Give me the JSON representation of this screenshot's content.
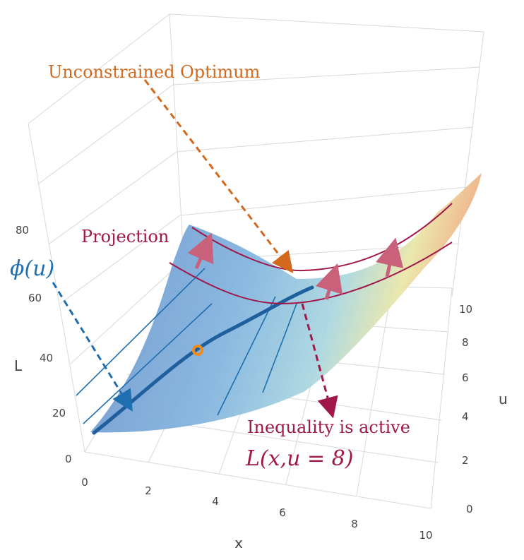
{
  "figure": {
    "axes": {
      "x": {
        "title": "x",
        "ticks": [
          "0",
          "2",
          "4",
          "6",
          "8",
          "10"
        ]
      },
      "u": {
        "title": "u",
        "ticks": [
          "0",
          "2",
          "4",
          "6",
          "8",
          "10"
        ]
      },
      "L": {
        "title": "L",
        "ticks": [
          "0",
          "20",
          "40",
          "60",
          "80"
        ]
      }
    },
    "annotations": {
      "unconstrained": "Unconstrained Optimum",
      "projection": "Projection",
      "phi": "ϕ(u)",
      "inequality": "Inequality is active",
      "slice": "L(x,u = 8)"
    },
    "colors": {
      "orange": "#d2691e",
      "crimson": "#a0174a",
      "blue": "#1f6fb0",
      "pink": "#c9617b",
      "grid": "#d8d8d8"
    }
  }
}
